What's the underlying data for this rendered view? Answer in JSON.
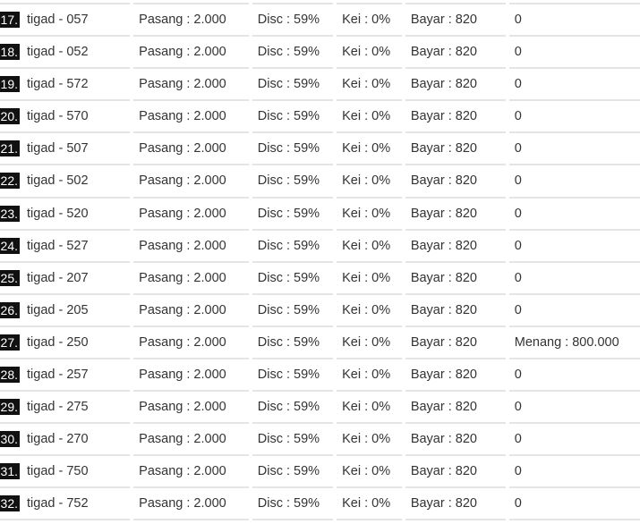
{
  "rows": [
    {
      "no": "17.",
      "name": "tigad - 057",
      "pasang": "Pasang : 2.000",
      "disc": "Disc : 59%",
      "kei": "Kei : 0%",
      "bayar": "Bayar : 820",
      "result": "0"
    },
    {
      "no": "18.",
      "name": "tigad - 052",
      "pasang": "Pasang : 2.000",
      "disc": "Disc : 59%",
      "kei": "Kei : 0%",
      "bayar": "Bayar : 820",
      "result": "0"
    },
    {
      "no": "19.",
      "name": "tigad - 572",
      "pasang": "Pasang : 2.000",
      "disc": "Disc : 59%",
      "kei": "Kei : 0%",
      "bayar": "Bayar : 820",
      "result": "0"
    },
    {
      "no": "20.",
      "name": "tigad - 570",
      "pasang": "Pasang : 2.000",
      "disc": "Disc : 59%",
      "kei": "Kei : 0%",
      "bayar": "Bayar : 820",
      "result": "0"
    },
    {
      "no": "21.",
      "name": "tigad - 507",
      "pasang": "Pasang : 2.000",
      "disc": "Disc : 59%",
      "kei": "Kei : 0%",
      "bayar": "Bayar : 820",
      "result": "0"
    },
    {
      "no": "22.",
      "name": "tigad - 502",
      "pasang": "Pasang : 2.000",
      "disc": "Disc : 59%",
      "kei": "Kei : 0%",
      "bayar": "Bayar : 820",
      "result": "0"
    },
    {
      "no": "23.",
      "name": "tigad - 520",
      "pasang": "Pasang : 2.000",
      "disc": "Disc : 59%",
      "kei": "Kei : 0%",
      "bayar": "Bayar : 820",
      "result": "0"
    },
    {
      "no": "24.",
      "name": "tigad - 527",
      "pasang": "Pasang : 2.000",
      "disc": "Disc : 59%",
      "kei": "Kei : 0%",
      "bayar": "Bayar : 820",
      "result": "0"
    },
    {
      "no": "25.",
      "name": "tigad - 207",
      "pasang": "Pasang : 2.000",
      "disc": "Disc : 59%",
      "kei": "Kei : 0%",
      "bayar": "Bayar : 820",
      "result": "0"
    },
    {
      "no": "26.",
      "name": "tigad - 205",
      "pasang": "Pasang : 2.000",
      "disc": "Disc : 59%",
      "kei": "Kei : 0%",
      "bayar": "Bayar : 820",
      "result": "0"
    },
    {
      "no": "27.",
      "name": "tigad - 250",
      "pasang": "Pasang : 2.000",
      "disc": "Disc : 59%",
      "kei": "Kei : 0%",
      "bayar": "Bayar : 820",
      "result": "Menang : 800.000"
    },
    {
      "no": "28.",
      "name": "tigad - 257",
      "pasang": "Pasang : 2.000",
      "disc": "Disc : 59%",
      "kei": "Kei : 0%",
      "bayar": "Bayar : 820",
      "result": "0"
    },
    {
      "no": "29.",
      "name": "tigad - 275",
      "pasang": "Pasang : 2.000",
      "disc": "Disc : 59%",
      "kei": "Kei : 0%",
      "bayar": "Bayar : 820",
      "result": "0"
    },
    {
      "no": "30.",
      "name": "tigad - 270",
      "pasang": "Pasang : 2.000",
      "disc": "Disc : 59%",
      "kei": "Kei : 0%",
      "bayar": "Bayar : 820",
      "result": "0"
    },
    {
      "no": "31.",
      "name": "tigad - 750",
      "pasang": "Pasang : 2.000",
      "disc": "Disc : 59%",
      "kei": "Kei : 0%",
      "bayar": "Bayar : 820",
      "result": "0"
    },
    {
      "no": "32.",
      "name": "tigad - 752",
      "pasang": "Pasang : 2.000",
      "disc": "Disc : 59%",
      "kei": "Kei : 0%",
      "bayar": "Bayar : 820",
      "result": "0"
    }
  ]
}
